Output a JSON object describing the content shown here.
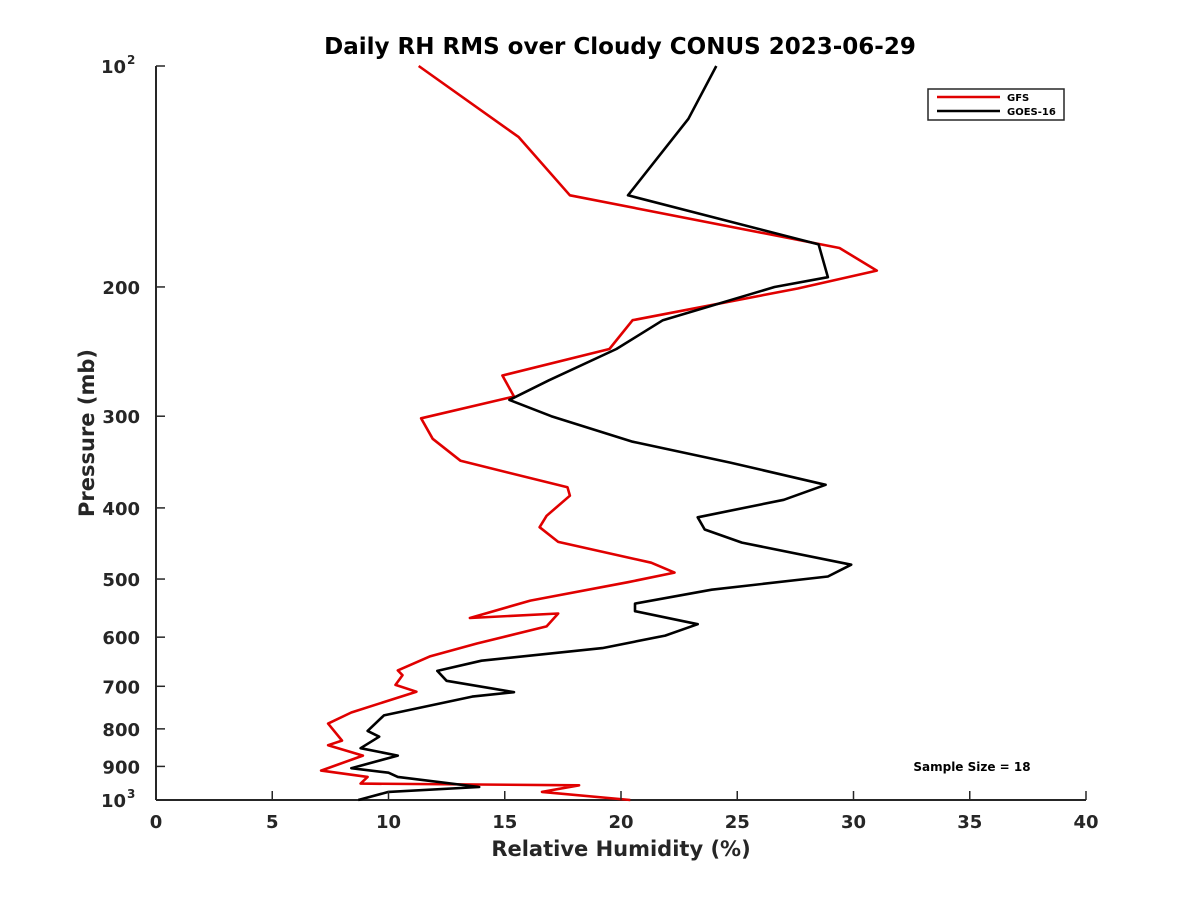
{
  "chart_data": {
    "type": "line",
    "title": "Daily RH RMS over Cloudy CONUS 2023-06-29",
    "xlabel": "Relative Humidity (%)",
    "ylabel": "Pressure (mb)",
    "xlim": [
      0,
      40
    ],
    "ylim": [
      100,
      1000
    ],
    "yscale": "log",
    "y_reversed": true,
    "xticks": [
      "0",
      "5",
      "10",
      "15",
      "20",
      "25",
      "30",
      "35",
      "40"
    ],
    "yticks": [
      {
        "value": 100,
        "base": "10",
        "exp": "2"
      },
      {
        "value": 200,
        "label": "200"
      },
      {
        "value": 300,
        "label": "300"
      },
      {
        "value": 400,
        "label": "400"
      },
      {
        "value": 500,
        "label": "500"
      },
      {
        "value": 600,
        "label": "600"
      },
      {
        "value": 700,
        "label": "700"
      },
      {
        "value": 800,
        "label": "800"
      },
      {
        "value": 900,
        "label": "900"
      },
      {
        "value": 1000,
        "base": "10",
        "exp": "3"
      }
    ],
    "legend_position": "top-right",
    "annotation": "Sample Size = 18",
    "series": [
      {
        "name": "GFS",
        "color": "#e00000",
        "points": [
          [
            11.3,
            100
          ],
          [
            15.6,
            125
          ],
          [
            17.8,
            150
          ],
          [
            29.4,
            177
          ],
          [
            31.0,
            190
          ],
          [
            27.6,
            201
          ],
          [
            20.5,
            222
          ],
          [
            19.5,
            243
          ],
          [
            14.9,
            264
          ],
          [
            15.4,
            282
          ],
          [
            11.4,
            302
          ],
          [
            11.9,
            322
          ],
          [
            13.1,
            345
          ],
          [
            17.7,
            375
          ],
          [
            17.8,
            385
          ],
          [
            16.8,
            410
          ],
          [
            16.5,
            425
          ],
          [
            17.3,
            445
          ],
          [
            21.3,
            475
          ],
          [
            22.3,
            490
          ],
          [
            20.3,
            505
          ],
          [
            16.1,
            535
          ],
          [
            13.5,
            565
          ],
          [
            17.3,
            557
          ],
          [
            16.8,
            580
          ],
          [
            13.8,
            612
          ],
          [
            11.8,
            637
          ],
          [
            10.4,
            666
          ],
          [
            10.6,
            676
          ],
          [
            10.3,
            697
          ],
          [
            11.2,
            712
          ],
          [
            8.4,
            760
          ],
          [
            7.4,
            787
          ],
          [
            8.0,
            830
          ],
          [
            7.4,
            842
          ],
          [
            8.9,
            870
          ],
          [
            7.1,
            912
          ],
          [
            9.1,
            930
          ],
          [
            8.8,
            950
          ],
          [
            18.2,
            955
          ],
          [
            16.6,
            975
          ],
          [
            20.4,
            1000
          ]
        ]
      },
      {
        "name": "GOES-16",
        "color": "#000000",
        "points": [
          [
            24.1,
            100
          ],
          [
            22.9,
            118
          ],
          [
            20.3,
            150
          ],
          [
            28.5,
            175
          ],
          [
            28.9,
            194
          ],
          [
            26.6,
            200
          ],
          [
            21.8,
            222
          ],
          [
            19.8,
            243
          ],
          [
            16.9,
            268
          ],
          [
            15.2,
            285
          ],
          [
            17.0,
            300
          ],
          [
            20.5,
            325
          ],
          [
            24.7,
            347
          ],
          [
            28.8,
            372
          ],
          [
            27.0,
            390
          ],
          [
            23.3,
            412
          ],
          [
            23.6,
            428
          ],
          [
            25.2,
            446
          ],
          [
            29.9,
            478
          ],
          [
            28.9,
            496
          ],
          [
            23.9,
            517
          ],
          [
            20.6,
            540
          ],
          [
            20.6,
            553
          ],
          [
            23.3,
            576
          ],
          [
            21.9,
            597
          ],
          [
            19.2,
            621
          ],
          [
            14.0,
            646
          ],
          [
            12.1,
            667
          ],
          [
            12.5,
            688
          ],
          [
            15.4,
            713
          ],
          [
            13.6,
            723
          ],
          [
            9.8,
            767
          ],
          [
            9.1,
            805
          ],
          [
            9.6,
            820
          ],
          [
            8.8,
            850
          ],
          [
            10.4,
            870
          ],
          [
            8.4,
            905
          ],
          [
            10.0,
            918
          ],
          [
            10.4,
            930
          ],
          [
            13.9,
            960
          ],
          [
            10.0,
            975
          ],
          [
            8.7,
            1000
          ]
        ]
      }
    ]
  }
}
